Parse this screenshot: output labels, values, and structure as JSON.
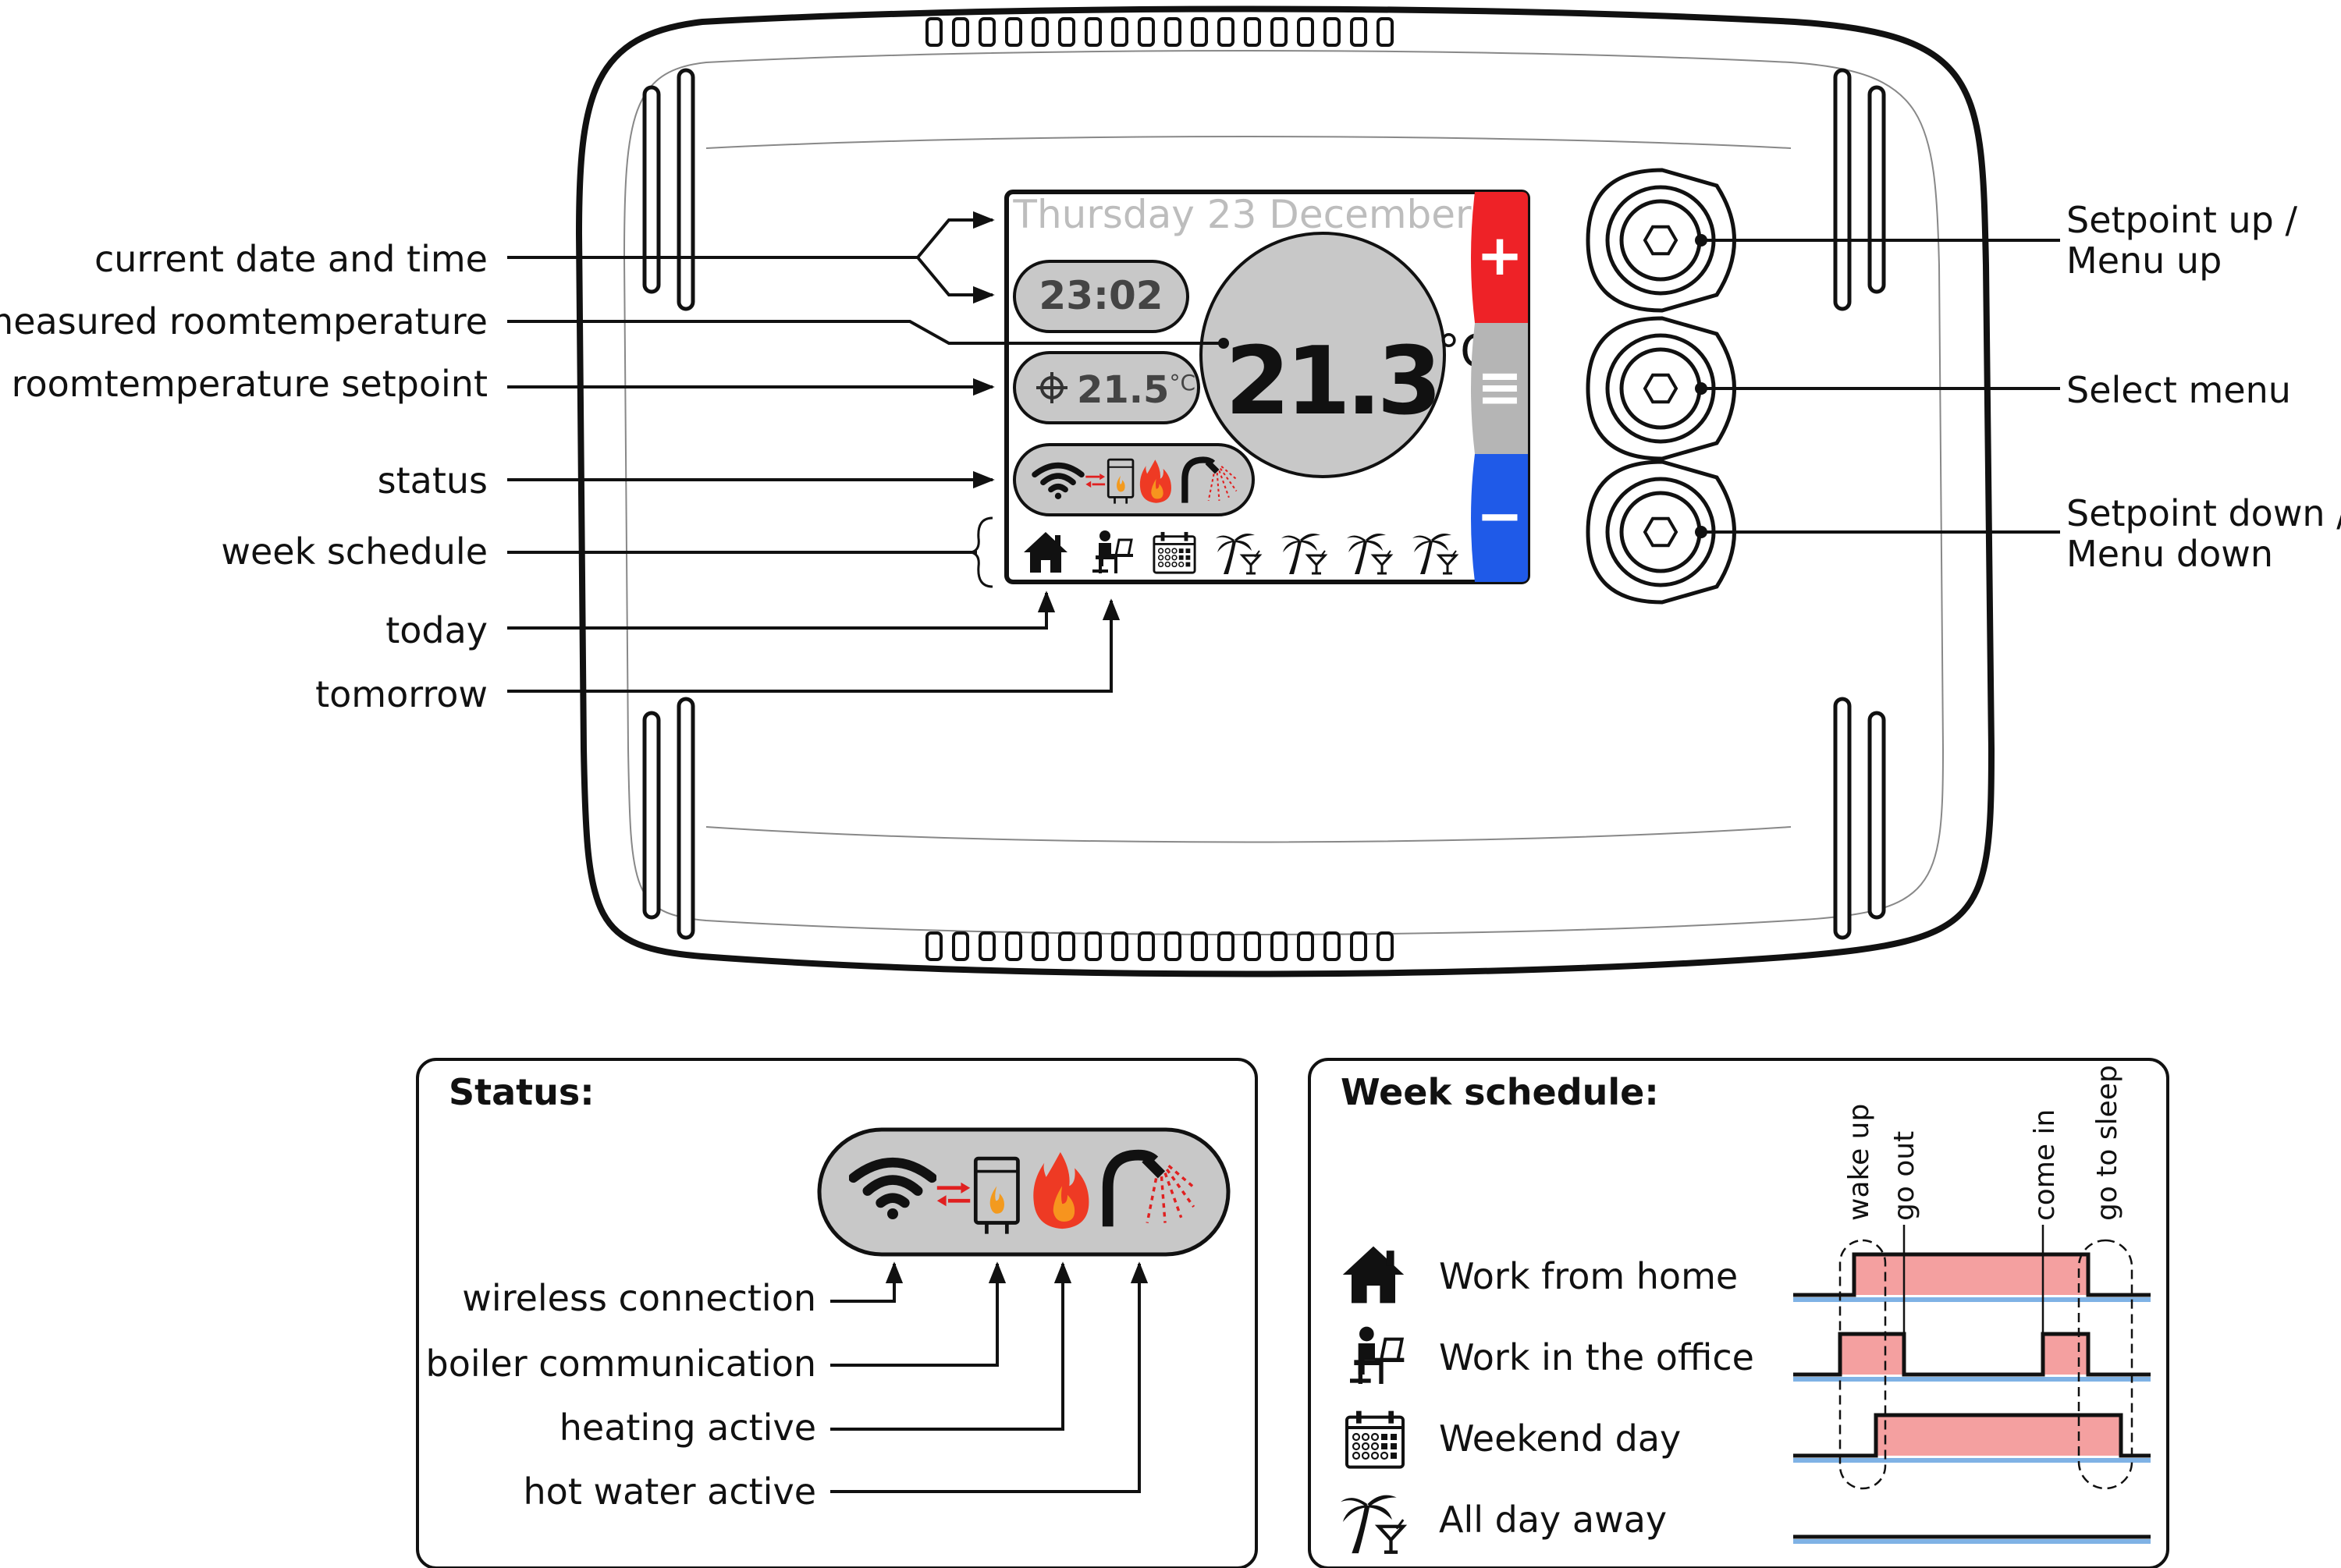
{
  "screen": {
    "date": "Thursday 23 December",
    "time": "23:02",
    "setpoint_value": "21.5",
    "setpoint_unit": "°C",
    "measured_value": "21.3",
    "measured_unit": "°C",
    "plus_symbol": "+",
    "minus_symbol": "−",
    "menu_symbol": "≡",
    "week_days": [
      "home-icon",
      "office-icon",
      "calendar-icon",
      "palm-icon",
      "palm-icon",
      "palm-icon",
      "palm-icon"
    ]
  },
  "callouts_left": {
    "date_time": "current date and time",
    "measured": "measured roomtemperature",
    "setpoint": "roomtemperature setpoint",
    "status": "status",
    "week_schedule": "week schedule",
    "today": "today",
    "tomorrow": "tomorrow"
  },
  "callouts_right": {
    "up_line1": "Setpoint up /",
    "up_line2": "Menu up",
    "select": "Select menu",
    "down_line1": "Setpoint down /",
    "down_line2": "Menu down"
  },
  "status_panel": {
    "title": "Status:",
    "wireless": "wireless connection",
    "boiler": "boiler communication",
    "heating": "heating active",
    "hot_water": "hot water active"
  },
  "schedule_panel": {
    "title": "Week schedule:",
    "events": [
      "wake up",
      "go out",
      "come in",
      "go to sleep"
    ],
    "rows": [
      {
        "icon": "home-icon",
        "label": "Work from home"
      },
      {
        "icon": "office-icon",
        "label": "Work in the office"
      },
      {
        "icon": "calendar-icon",
        "label": "Weekend day"
      },
      {
        "icon": "palm-icon",
        "label": "All day away"
      }
    ]
  },
  "colors": {
    "plus_button": "#ee2227",
    "menu_button": "#b5b5b5",
    "minus_button": "#1f5ae8",
    "pill_gray": "#c8c8c8",
    "schedule_fill": "#f4a0a0",
    "schedule_base": "#7fb2e5",
    "arrow_red": "#e02020"
  }
}
